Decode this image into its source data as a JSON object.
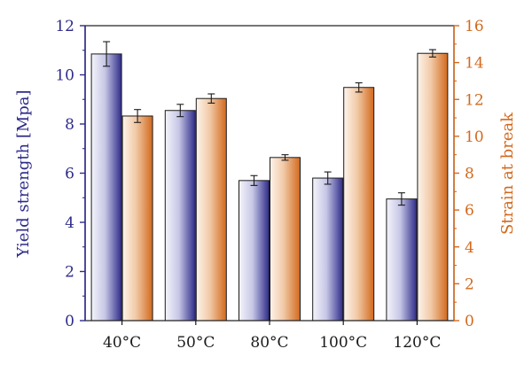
{
  "chart_data": {
    "type": "bar",
    "categories": [
      "40°C",
      "50°C",
      "80°C",
      "100°C",
      "120°C"
    ],
    "series": [
      {
        "name": "Yield strength [Mpa]",
        "axis": "left",
        "values": [
          10.85,
          8.55,
          5.7,
          5.8,
          4.95
        ],
        "errors": [
          0.5,
          0.25,
          0.2,
          0.25,
          0.25
        ],
        "color": "#2e2b8a"
      },
      {
        "name": "Strain at break",
        "axis": "right",
        "values": [
          11.1,
          12.05,
          8.85,
          12.65,
          14.5
        ],
        "errors": [
          0.35,
          0.25,
          0.15,
          0.25,
          0.2
        ],
        "color": "#d2691e"
      }
    ],
    "ylabel_left": "Yield strength [Mpa]",
    "ylabel_right": "Strain at break",
    "xlabel": "",
    "ylim_left": [
      0,
      12
    ],
    "ylim_right": [
      0,
      16
    ],
    "yticks_left": [
      "0",
      "2",
      "4",
      "6",
      "8",
      "10",
      "12"
    ],
    "yticks_right": [
      "0",
      "2",
      "4",
      "6",
      "8",
      "10",
      "12",
      "14",
      "16"
    ],
    "grid": false,
    "legend": "none"
  }
}
